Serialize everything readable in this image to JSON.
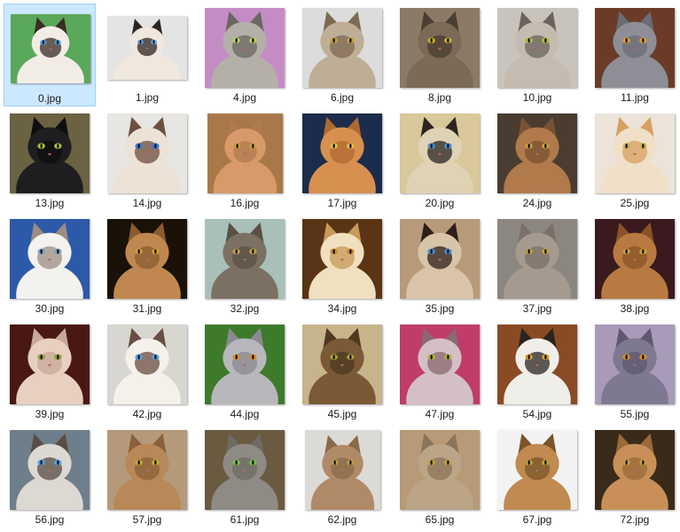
{
  "files": [
    {
      "name": "0.jpg",
      "bg": "#5aa85a",
      "fur": "#f2ece6",
      "mask": "#3a2c25",
      "eye": "#4a9ad8",
      "selected": true
    },
    {
      "name": "1.jpg",
      "bg": "#e4e4e4",
      "fur": "#f0e8de",
      "mask": "#2e2420",
      "eye": "#5aa6e0",
      "selected": false
    },
    {
      "name": "4.jpg",
      "bg": "#c48cc4",
      "fur": "#b4b0a8",
      "mask": "#6a6660",
      "eye": "#b6d24a",
      "selected": false
    },
    {
      "name": "6.jpg",
      "bg": "#dcdcdc",
      "fur": "#bfae96",
      "mask": "#7d6a52",
      "eye": "#c8a030",
      "selected": false
    },
    {
      "name": "8.jpg",
      "bg": "#8a7a66",
      "fur": "#7a6a56",
      "mask": "#4a3e30",
      "eye": "#c8b030",
      "selected": false
    },
    {
      "name": "10.jpg",
      "bg": "#c8c4bc",
      "fur": "#c4bcb0",
      "mask": "#6a645c",
      "eye": "#a8c040",
      "selected": false
    },
    {
      "name": "11.jpg",
      "bg": "#6a3c28",
      "fur": "#8e8e96",
      "mask": "#6c6c74",
      "eye": "#e0a020",
      "selected": false
    },
    {
      "name": "13.jpg",
      "bg": "#6a6240",
      "fur": "#1e1e20",
      "mask": "#0e0e10",
      "eye": "#a8c040",
      "selected": false
    },
    {
      "name": "14.jpg",
      "bg": "#e8e6e2",
      "fur": "#ece2d6",
      "mask": "#6e4e3e",
      "eye": "#3a7ad8",
      "selected": false
    },
    {
      "name": "16.jpg",
      "bg": "#a87848",
      "fur": "#d89a68",
      "mask": "#b07a50",
      "eye": "#c8a040",
      "selected": false
    },
    {
      "name": "17.jpg",
      "bg": "#1c2c4c",
      "fur": "#d89050",
      "mask": "#b06a30",
      "eye": "#e0c040",
      "selected": false
    },
    {
      "name": "20.jpg",
      "bg": "#d8c89a",
      "fur": "#e0d2b4",
      "mask": "#2a2420",
      "eye": "#4a8ad0",
      "selected": false
    },
    {
      "name": "24.jpg",
      "bg": "#4a3c30",
      "fur": "#b07a4a",
      "mask": "#7a5232",
      "eye": "#c8a040",
      "selected": false
    },
    {
      "name": "25.jpg",
      "bg": "#ece4da",
      "fur": "#f0e0c8",
      "mask": "#d8a060",
      "eye": "#d0b040",
      "selected": false
    },
    {
      "name": "30.jpg",
      "bg": "#2c5aa8",
      "fur": "#f4f2ee",
      "mask": "#9c8c84",
      "eye": "#7aa0c0",
      "selected": false
    },
    {
      "name": "31.jpg",
      "bg": "#1a1208",
      "fur": "#c08850",
      "mask": "#8a5c30",
      "eye": "#d0a030",
      "selected": false
    },
    {
      "name": "32.jpg",
      "bg": "#a8c0b8",
      "fur": "#7c7062",
      "mask": "#5a5044",
      "eye": "#c0a040",
      "selected": false
    },
    {
      "name": "34.jpg",
      "bg": "#5a3414",
      "fur": "#f0e0c0",
      "mask": "#c89a5a",
      "eye": "#c88a30",
      "selected": false
    },
    {
      "name": "35.jpg",
      "bg": "#b89a7a",
      "fur": "#d8c4a8",
      "mask": "#2e2018",
      "eye": "#4a8ad0",
      "selected": false
    },
    {
      "name": "37.jpg",
      "bg": "#8c8680",
      "fur": "#a49a90",
      "mask": "#7a7068",
      "eye": "#c0a040",
      "selected": false
    },
    {
      "name": "38.jpg",
      "bg": "#3a1a1e",
      "fur": "#b87a40",
      "mask": "#8a5428",
      "eye": "#d0a030",
      "selected": false
    },
    {
      "name": "39.jpg",
      "bg": "#4a1814",
      "fur": "#e8d0c0",
      "mask": "#c8a898",
      "eye": "#8aa040",
      "selected": false
    },
    {
      "name": "42.jpg",
      "bg": "#d8d6d0",
      "fur": "#f4f0ea",
      "mask": "#6a4e42",
      "eye": "#5aa0e0",
      "selected": false
    },
    {
      "name": "44.jpg",
      "bg": "#3e7a2c",
      "fur": "#b8b8bc",
      "mask": "#8a8a90",
      "eye": "#d89020",
      "selected": false
    },
    {
      "name": "45.jpg",
      "bg": "#c8b48a",
      "fur": "#7a5a36",
      "mask": "#4e3820",
      "eye": "#a8a030",
      "selected": false
    },
    {
      "name": "47.jpg",
      "bg": "#c03c6a",
      "fur": "#d4c0c4",
      "mask": "#8a6a70",
      "eye": "#b0b040",
      "selected": false
    },
    {
      "name": "54.jpg",
      "bg": "#8a4a24",
      "fur": "#f0eee8",
      "mask": "#2a2420",
      "eye": "#d0a030",
      "selected": false
    },
    {
      "name": "55.jpg",
      "bg": "#a89ab8",
      "fur": "#7e7890",
      "mask": "#5e5870",
      "eye": "#d89020",
      "selected": false
    },
    {
      "name": "56.jpg",
      "bg": "#6e7e8a",
      "fur": "#dcd8d2",
      "mask": "#5a4c44",
      "eye": "#5aa0e0",
      "selected": false
    },
    {
      "name": "57.jpg",
      "bg": "#b49a7a",
      "fur": "#b88858",
      "mask": "#8a6038",
      "eye": "#c0b030",
      "selected": false
    },
    {
      "name": "61.jpg",
      "bg": "#6a5a40",
      "fur": "#8e8a84",
      "mask": "#6e6a64",
      "eye": "#7ac040",
      "selected": false
    },
    {
      "name": "62.jpg",
      "bg": "#dcdad6",
      "fur": "#b08a66",
      "mask": "#8a6a4c",
      "eye": "#c0a040",
      "selected": false
    },
    {
      "name": "65.jpg",
      "bg": "#b89a78",
      "fur": "#bca486",
      "mask": "#8c7458",
      "eye": "#c0a040",
      "selected": false
    },
    {
      "name": "67.jpg",
      "bg": "#f2f2f2",
      "fur": "#c08a50",
      "mask": "#7a5428",
      "eye": "#c0a040",
      "selected": false
    },
    {
      "name": "72.jpg",
      "bg": "#3a2a1a",
      "fur": "#c89058",
      "mask": "#9a6a38",
      "eye": "#c8a040",
      "selected": false
    }
  ]
}
